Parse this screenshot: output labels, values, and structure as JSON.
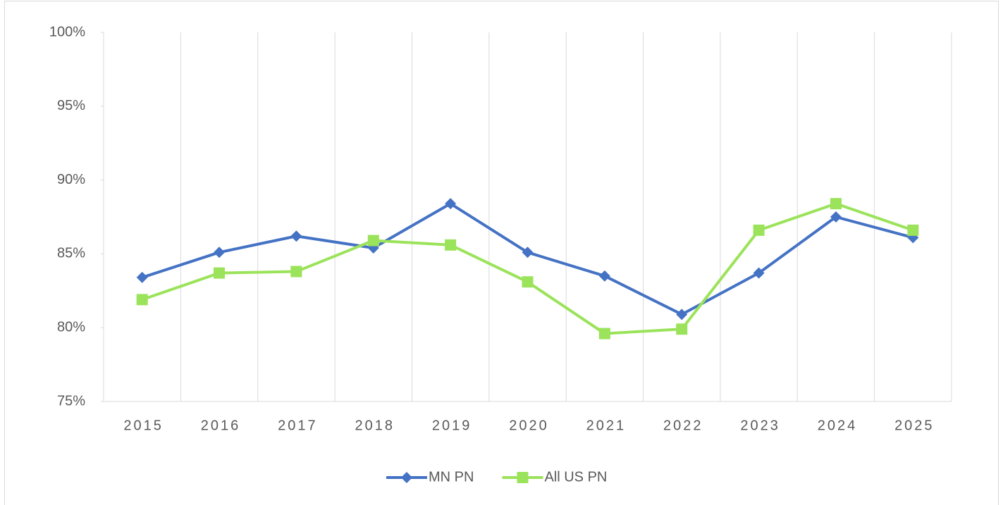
{
  "chart_data": {
    "type": "line",
    "categories": [
      "2015",
      "2016",
      "2017",
      "2018",
      "2019",
      "2020",
      "2021",
      "2022",
      "2023",
      "2024",
      "2025"
    ],
    "series": [
      {
        "name": "MN PN",
        "color": "#4472c4",
        "marker": "diamond",
        "values": [
          83.4,
          85.1,
          86.2,
          85.4,
          88.4,
          85.1,
          83.5,
          80.9,
          83.7,
          87.5,
          86.1
        ]
      },
      {
        "name": "All US PN",
        "color": "#9be35a",
        "marker": "square",
        "values": [
          81.9,
          83.7,
          83.8,
          85.9,
          85.6,
          83.1,
          79.6,
          79.9,
          86.6,
          88.4,
          86.6
        ]
      }
    ],
    "ylim": [
      75,
      100
    ],
    "yticks": [
      {
        "value": 75,
        "label": "75%"
      },
      {
        "value": 80,
        "label": "80%"
      },
      {
        "value": 85,
        "label": "85%"
      },
      {
        "value": 90,
        "label": "90%"
      },
      {
        "value": 95,
        "label": "95%"
      },
      {
        "value": 100,
        "label": "100%"
      }
    ],
    "grid": false,
    "legend": "bottom"
  }
}
